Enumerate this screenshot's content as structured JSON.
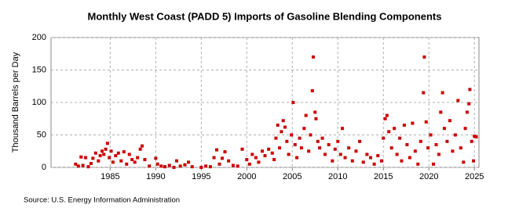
{
  "chart_data": {
    "type": "scatter",
    "title": "Monthly West Coast (PADD 5) Imports of Gasoline Blending Components",
    "y_label": "Thousand Barrels per Day",
    "source": "Source: U.S. Energy Information Administration",
    "color": "#cc0000",
    "grid": true,
    "xlim": [
      1978.5,
      2025.5
    ],
    "xticks": [
      1985,
      1990,
      1995,
      2000,
      2005,
      2010,
      2015,
      2020,
      2025
    ],
    "ylim": [
      0,
      200
    ],
    "yticks": [
      0,
      50,
      100,
      150,
      200
    ],
    "x": [
      1981.2,
      1981.5,
      1981.8,
      1982.0,
      1982.3,
      1982.6,
      1982.9,
      1983.1,
      1983.4,
      1983.7,
      1983.9,
      1984.1,
      1984.3,
      1984.5,
      1984.7,
      1984.9,
      1985.1,
      1985.3,
      1985.6,
      1985.9,
      1986.2,
      1986.5,
      1986.8,
      1987.1,
      1987.4,
      1987.7,
      1988.0,
      1988.3,
      1988.5,
      1988.8,
      1989.3,
      1990.0,
      1990.2,
      1990.6,
      1991.0,
      1991.5,
      1992.0,
      1992.3,
      1992.7,
      1993.2,
      1993.6,
      1994.0,
      1995.0,
      1995.5,
      1996.0,
      1996.4,
      1996.7,
      1997.0,
      1997.3,
      1997.6,
      1998.0,
      1998.5,
      1999.0,
      1999.5,
      2000.0,
      2000.3,
      2000.6,
      2001.0,
      2001.3,
      2001.7,
      2002.0,
      2002.4,
      2002.8,
      2003.0,
      2003.2,
      2003.4,
      2003.6,
      2003.8,
      2004.0,
      2004.2,
      2004.4,
      2004.6,
      2004.9,
      2005.1,
      2005.3,
      2005.5,
      2005.8,
      2006.0,
      2006.3,
      2006.5,
      2006.8,
      2007.0,
      2007.2,
      2007.3,
      2007.5,
      2007.6,
      2007.8,
      2008.0,
      2008.3,
      2008.6,
      2009.0,
      2009.4,
      2009.7,
      2010.0,
      2010.3,
      2010.5,
      2010.8,
      2011.2,
      2011.6,
      2012.0,
      2012.4,
      2012.8,
      2013.2,
      2013.6,
      2014.0,
      2014.4,
      2014.8,
      2015.0,
      2015.2,
      2015.4,
      2015.6,
      2015.9,
      2016.2,
      2016.5,
      2016.8,
      2017.0,
      2017.3,
      2017.6,
      2017.9,
      2018.2,
      2018.5,
      2018.8,
      2019.1,
      2019.4,
      2019.5,
      2019.7,
      2019.9,
      2020.2,
      2020.5,
      2020.8,
      2021.1,
      2021.3,
      2021.5,
      2021.7,
      2022.0,
      2022.3,
      2022.6,
      2022.9,
      2023.2,
      2023.5,
      2023.8,
      2024.0,
      2024.2,
      2024.4,
      2024.5,
      2024.7,
      2024.9,
      2025.0,
      2025.2
    ],
    "values": [
      5,
      2,
      16,
      3,
      15,
      1,
      6,
      14,
      22,
      10,
      18,
      25,
      20,
      28,
      37,
      15,
      25,
      8,
      18,
      22,
      10,
      24,
      5,
      20,
      12,
      8,
      15,
      28,
      33,
      12,
      2,
      14,
      5,
      2,
      1,
      3,
      0,
      10,
      2,
      4,
      8,
      1,
      0,
      2,
      1,
      15,
      27,
      5,
      14,
      24,
      10,
      3,
      2,
      28,
      12,
      5,
      20,
      15,
      8,
      25,
      18,
      28,
      22,
      12,
      45,
      65,
      30,
      55,
      72,
      62,
      40,
      20,
      50,
      100,
      35,
      15,
      45,
      30,
      60,
      80,
      25,
      50,
      118,
      170,
      85,
      75,
      40,
      30,
      45,
      20,
      35,
      10,
      28,
      40,
      20,
      60,
      15,
      30,
      10,
      25,
      40,
      8,
      20,
      15,
      5,
      18,
      10,
      45,
      75,
      80,
      55,
      30,
      60,
      20,
      45,
      10,
      65,
      35,
      15,
      68,
      25,
      5,
      40,
      115,
      170,
      70,
      30,
      50,
      5,
      35,
      20,
      85,
      115,
      60,
      40,
      72,
      25,
      50,
      103,
      30,
      8,
      60,
      85,
      98,
      120,
      40,
      10,
      48,
      47
    ]
  }
}
